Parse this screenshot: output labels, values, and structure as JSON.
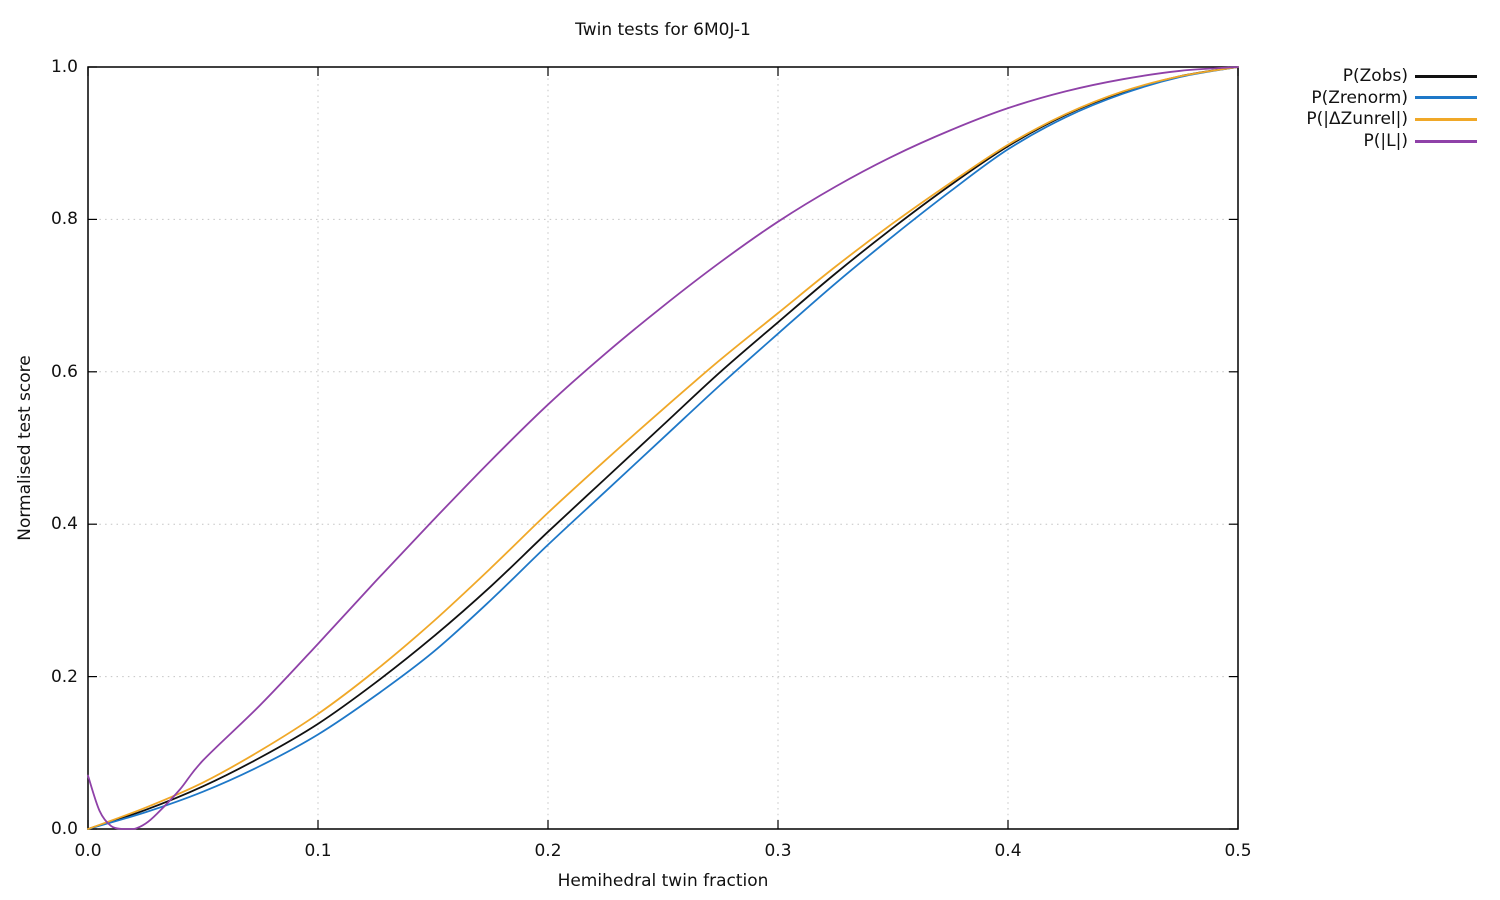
{
  "chart_data": {
    "type": "line",
    "title": "Twin tests for 6M0J-1",
    "xlabel": "Hemihedral twin fraction",
    "ylabel": "Normalised test score",
    "xlim": [
      0,
      0.5
    ],
    "ylim": [
      0,
      1.0
    ],
    "grid": true,
    "grid_color": "#c4c4c4",
    "axis_color": "#000000",
    "background_color": "#ffffff",
    "legend_position": "outside-right-top",
    "x_ticks": [
      0.0,
      0.1,
      0.2,
      0.3,
      0.4,
      0.5
    ],
    "x_tick_labels": [
      "0.0",
      "0.1",
      "0.2",
      "0.3",
      "0.4",
      "0.5"
    ],
    "y_ticks": [
      0.0,
      0.2,
      0.4,
      0.6,
      0.8,
      1.0
    ],
    "y_tick_labels": [
      "0.0",
      "0.2",
      "0.4",
      "0.6",
      "0.8",
      "1.0"
    ],
    "series": [
      {
        "name": "P(Zobs)",
        "color": "#111111",
        "points": [
          [
            0,
            0
          ],
          [
            0.025,
            0.025
          ],
          [
            0.05,
            0.056
          ],
          [
            0.075,
            0.094
          ],
          [
            0.1,
            0.138
          ],
          [
            0.125,
            0.192
          ],
          [
            0.15,
            0.252
          ],
          [
            0.175,
            0.318
          ],
          [
            0.2,
            0.39
          ],
          [
            0.225,
            0.46
          ],
          [
            0.25,
            0.53
          ],
          [
            0.275,
            0.6
          ],
          [
            0.3,
            0.665
          ],
          [
            0.325,
            0.729
          ],
          [
            0.35,
            0.789
          ],
          [
            0.375,
            0.845
          ],
          [
            0.4,
            0.896
          ],
          [
            0.425,
            0.937
          ],
          [
            0.45,
            0.967
          ],
          [
            0.475,
            0.988
          ],
          [
            0.5,
            1
          ]
        ]
      },
      {
        "name": "P(Zrenorm)",
        "color": "#1e78c8",
        "points": [
          [
            0,
            0
          ],
          [
            0.025,
            0.022
          ],
          [
            0.05,
            0.049
          ],
          [
            0.075,
            0.083
          ],
          [
            0.1,
            0.124
          ],
          [
            0.125,
            0.175
          ],
          [
            0.15,
            0.232
          ],
          [
            0.175,
            0.3
          ],
          [
            0.2,
            0.373
          ],
          [
            0.225,
            0.443
          ],
          [
            0.25,
            0.513
          ],
          [
            0.275,
            0.583
          ],
          [
            0.3,
            0.65
          ],
          [
            0.325,
            0.716
          ],
          [
            0.35,
            0.778
          ],
          [
            0.375,
            0.837
          ],
          [
            0.4,
            0.892
          ],
          [
            0.425,
            0.934
          ],
          [
            0.45,
            0.965
          ],
          [
            0.475,
            0.987
          ],
          [
            0.5,
            1
          ]
        ]
      },
      {
        "name": "P(|ΔZunrel|)",
        "color": "#f0a828",
        "points": [
          [
            0,
            0
          ],
          [
            0.025,
            0.028
          ],
          [
            0.05,
            0.061
          ],
          [
            0.075,
            0.103
          ],
          [
            0.1,
            0.151
          ],
          [
            0.125,
            0.208
          ],
          [
            0.15,
            0.272
          ],
          [
            0.175,
            0.342
          ],
          [
            0.2,
            0.415
          ],
          [
            0.225,
            0.484
          ],
          [
            0.25,
            0.551
          ],
          [
            0.275,
            0.616
          ],
          [
            0.3,
            0.677
          ],
          [
            0.325,
            0.738
          ],
          [
            0.35,
            0.795
          ],
          [
            0.375,
            0.848
          ],
          [
            0.4,
            0.898
          ],
          [
            0.425,
            0.938
          ],
          [
            0.45,
            0.968
          ],
          [
            0.475,
            0.988
          ],
          [
            0.5,
            1
          ]
        ]
      },
      {
        "name": "P(|L|)",
        "color": "#8f41a8",
        "points": [
          [
            0,
            0.07
          ],
          [
            0.005,
            0.024
          ],
          [
            0.01,
            0.004
          ],
          [
            0.015,
            0
          ],
          [
            0.02,
            0
          ],
          [
            0.025,
            0.007
          ],
          [
            0.03,
            0.02
          ],
          [
            0.04,
            0.052
          ],
          [
            0.05,
            0.09
          ],
          [
            0.075,
            0.163
          ],
          [
            0.1,
            0.243
          ],
          [
            0.125,
            0.325
          ],
          [
            0.15,
            0.405
          ],
          [
            0.175,
            0.483
          ],
          [
            0.2,
            0.557
          ],
          [
            0.225,
            0.624
          ],
          [
            0.25,
            0.686
          ],
          [
            0.275,
            0.744
          ],
          [
            0.3,
            0.797
          ],
          [
            0.325,
            0.843
          ],
          [
            0.35,
            0.883
          ],
          [
            0.375,
            0.917
          ],
          [
            0.4,
            0.946
          ],
          [
            0.425,
            0.968
          ],
          [
            0.45,
            0.984
          ],
          [
            0.475,
            0.995
          ],
          [
            0.5,
            1
          ]
        ]
      }
    ]
  }
}
